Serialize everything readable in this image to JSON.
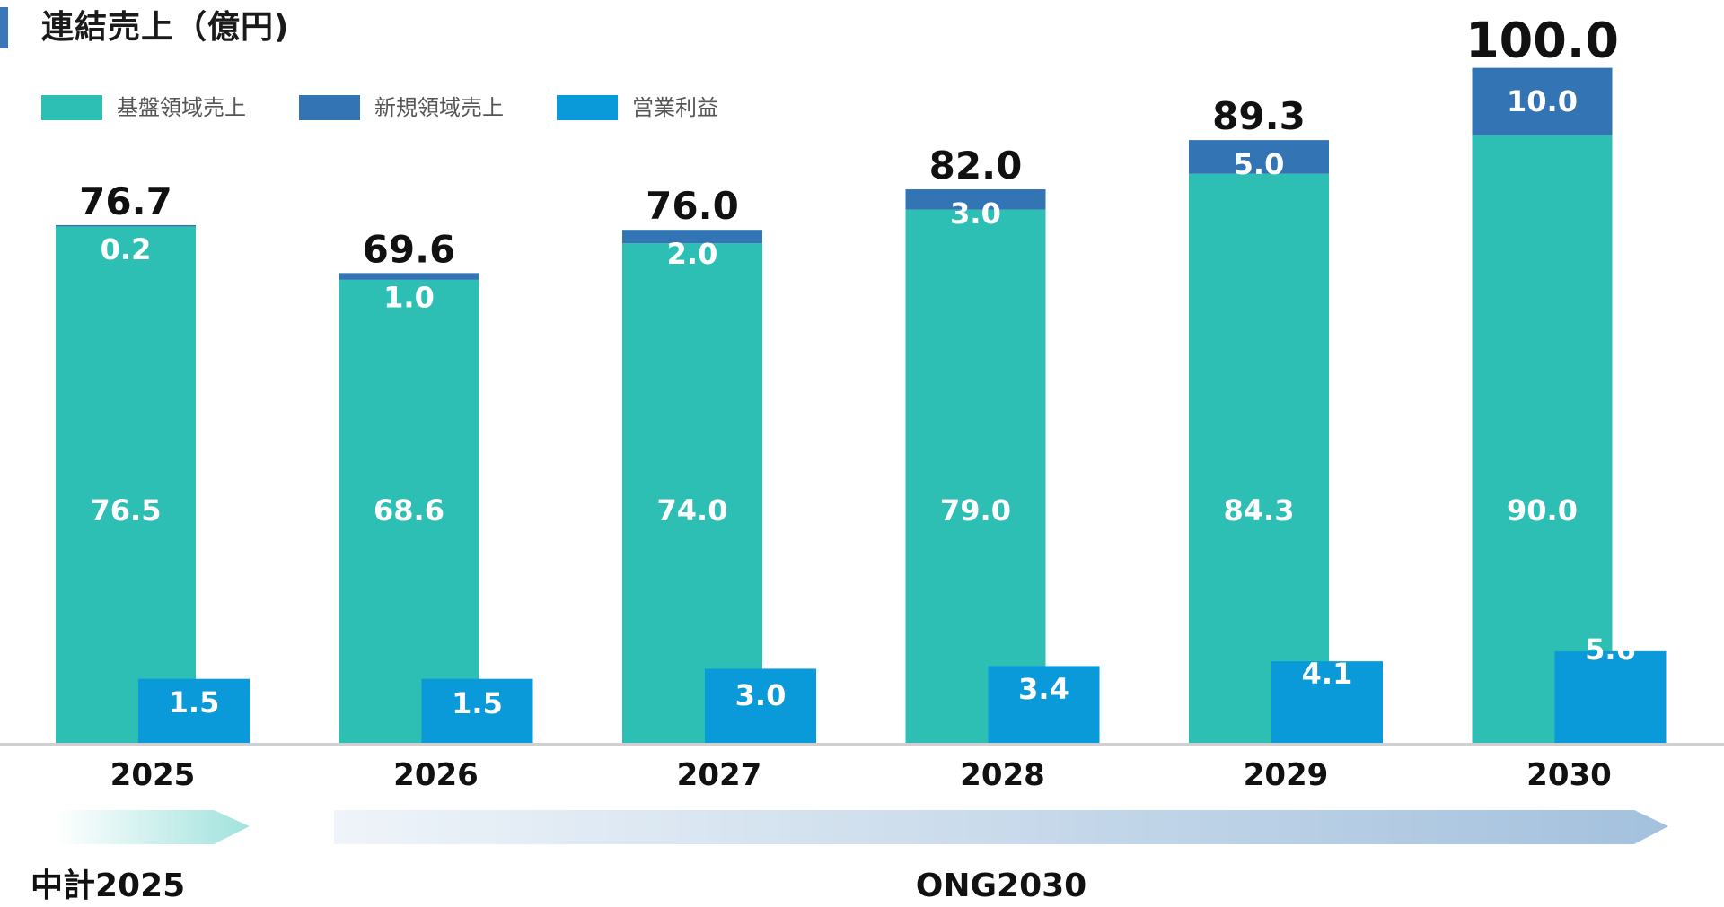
{
  "chart_data": {
    "type": "bar",
    "title": "連結売上（億円)",
    "categories": [
      "2025",
      "2026",
      "2027",
      "2028",
      "2029",
      "2030"
    ],
    "series": [
      {
        "name": "基盤領域売上",
        "color": "#2dbfb4",
        "values": [
          76.5,
          68.6,
          74.0,
          79.0,
          84.3,
          90.0
        ]
      },
      {
        "name": "新規領域売上",
        "color": "#3274b4",
        "values": [
          0.2,
          1.0,
          2.0,
          3.0,
          5.0,
          10.0
        ]
      },
      {
        "name": "営業利益",
        "color": "#0a9ad9",
        "values": [
          1.5,
          1.5,
          3.0,
          3.4,
          4.1,
          5.6
        ]
      }
    ],
    "value_labels": {
      "base": [
        "76.5",
        "68.6",
        "74.0",
        "79.0",
        "84.3",
        "90.0"
      ],
      "new": [
        "0.2",
        "1.0",
        "2.0",
        "3.0",
        "5.0",
        "10.0"
      ],
      "profit": [
        "1.5",
        "1.5",
        "3.0",
        "3.4",
        "4.1",
        "5.6"
      ]
    },
    "totals": [
      "76.7",
      "69.6",
      "76.0",
      "82.0",
      "89.3",
      "100.0"
    ],
    "ylim": [
      0,
      105
    ],
    "xlabel": "",
    "ylabel": "",
    "grid": false,
    "legend_position": "top-left",
    "periods": [
      {
        "label": "中計2025",
        "color": "#2dbfb4"
      },
      {
        "label": "ONG2030",
        "color": "#3274b4"
      }
    ]
  }
}
